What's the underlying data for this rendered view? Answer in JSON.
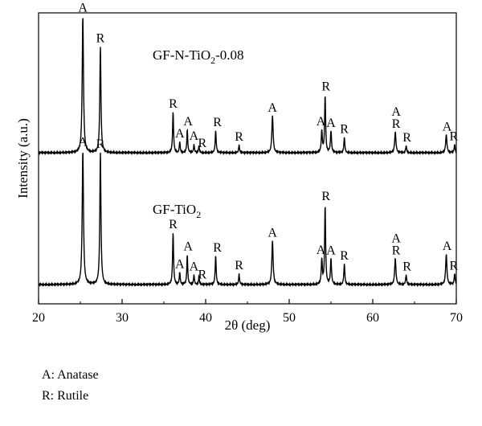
{
  "chart_data": {
    "type": "line",
    "xlabel": "2θ (deg)",
    "ylabel": "Intensity (a.u.)",
    "xlim": [
      20,
      70
    ],
    "xticks": [
      20,
      30,
      40,
      50,
      60,
      70
    ],
    "grid": false,
    "series": [
      {
        "name": "GF-N-TiO2-0.08",
        "label_parts": [
          "GF-N-TiO",
          "2",
          "-0.08"
        ],
        "baseline_y": 1.0,
        "peaks": [
          {
            "x": 25.3,
            "h": 1.0,
            "w": 0.18
          },
          {
            "x": 27.4,
            "h": 0.78,
            "w": 0.16
          },
          {
            "x": 36.1,
            "h": 0.3,
            "w": 0.14
          },
          {
            "x": 36.9,
            "h": 0.08,
            "w": 0.12
          },
          {
            "x": 37.8,
            "h": 0.17,
            "w": 0.13
          },
          {
            "x": 38.6,
            "h": 0.06,
            "w": 0.12
          },
          {
            "x": 39.2,
            "h": 0.05,
            "w": 0.12
          },
          {
            "x": 41.2,
            "h": 0.16,
            "w": 0.14
          },
          {
            "x": 44.0,
            "h": 0.06,
            "w": 0.12
          },
          {
            "x": 48.0,
            "h": 0.27,
            "w": 0.18
          },
          {
            "x": 53.9,
            "h": 0.16,
            "w": 0.15
          },
          {
            "x": 54.3,
            "h": 0.42,
            "w": 0.14
          },
          {
            "x": 55.0,
            "h": 0.16,
            "w": 0.15
          },
          {
            "x": 56.6,
            "h": 0.11,
            "w": 0.14
          },
          {
            "x": 62.7,
            "h": 0.15,
            "w": 0.18
          },
          {
            "x": 64.0,
            "h": 0.05,
            "w": 0.14
          },
          {
            "x": 68.8,
            "h": 0.13,
            "w": 0.18
          },
          {
            "x": 69.8,
            "h": 0.06,
            "w": 0.14
          }
        ]
      },
      {
        "name": "GF-TiO2",
        "label_parts": [
          "GF-TiO",
          "2",
          ""
        ],
        "baseline_y": 0.0,
        "peaks": [
          {
            "x": 25.3,
            "h": 0.98,
            "w": 0.18
          },
          {
            "x": 27.4,
            "h": 0.97,
            "w": 0.16
          },
          {
            "x": 36.1,
            "h": 0.38,
            "w": 0.14
          },
          {
            "x": 36.9,
            "h": 0.09,
            "w": 0.12
          },
          {
            "x": 37.8,
            "h": 0.22,
            "w": 0.13
          },
          {
            "x": 38.6,
            "h": 0.07,
            "w": 0.12
          },
          {
            "x": 39.2,
            "h": 0.06,
            "w": 0.12
          },
          {
            "x": 41.2,
            "h": 0.21,
            "w": 0.14
          },
          {
            "x": 44.0,
            "h": 0.08,
            "w": 0.12
          },
          {
            "x": 48.0,
            "h": 0.32,
            "w": 0.18
          },
          {
            "x": 53.9,
            "h": 0.18,
            "w": 0.15
          },
          {
            "x": 54.3,
            "h": 0.58,
            "w": 0.14
          },
          {
            "x": 55.0,
            "h": 0.19,
            "w": 0.15
          },
          {
            "x": 56.6,
            "h": 0.15,
            "w": 0.14
          },
          {
            "x": 62.7,
            "h": 0.19,
            "w": 0.18
          },
          {
            "x": 64.0,
            "h": 0.07,
            "w": 0.14
          },
          {
            "x": 68.8,
            "h": 0.22,
            "w": 0.18
          },
          {
            "x": 69.8,
            "h": 0.08,
            "w": 0.14
          }
        ]
      }
    ],
    "annotations": [
      {
        "text": "A",
        "x": 25.3,
        "series": 0
      },
      {
        "text": "R",
        "x": 27.4,
        "series": 0
      },
      {
        "text": "R",
        "x": 36.1,
        "series": 0
      },
      {
        "text": "A",
        "x": 36.9,
        "series": 0
      },
      {
        "text": "A",
        "x": 37.9,
        "series": 0
      },
      {
        "text": "A",
        "x": 38.6,
        "series": 0
      },
      {
        "text": "R",
        "x": 39.6,
        "series": 0
      },
      {
        "text": "R",
        "x": 41.4,
        "series": 0
      },
      {
        "text": "R",
        "x": 44.0,
        "series": 0
      },
      {
        "text": "A",
        "x": 48.0,
        "series": 0
      },
      {
        "text": "A",
        "x": 53.8,
        "series": 0
      },
      {
        "text": "R",
        "x": 54.4,
        "series": 0
      },
      {
        "text": "A",
        "x": 55.0,
        "series": 0
      },
      {
        "text": "R",
        "x": 56.6,
        "series": 0
      },
      {
        "text": "A",
        "x": 62.8,
        "series": 0,
        "stack": 1
      },
      {
        "text": "R",
        "x": 62.8,
        "series": 0
      },
      {
        "text": "R",
        "x": 64.1,
        "series": 0
      },
      {
        "text": "A",
        "x": 68.9,
        "series": 0
      },
      {
        "text": "R",
        "x": 69.7,
        "series": 0
      },
      {
        "text": "A",
        "x": 25.3,
        "series": 1
      },
      {
        "text": "R",
        "x": 27.4,
        "series": 1
      },
      {
        "text": "R",
        "x": 36.1,
        "series": 1
      },
      {
        "text": "A",
        "x": 36.9,
        "series": 1
      },
      {
        "text": "A",
        "x": 37.9,
        "series": 1
      },
      {
        "text": "A",
        "x": 38.6,
        "series": 1
      },
      {
        "text": "R",
        "x": 39.6,
        "series": 1
      },
      {
        "text": "R",
        "x": 41.4,
        "series": 1
      },
      {
        "text": "R",
        "x": 44.0,
        "series": 1
      },
      {
        "text": "A",
        "x": 48.0,
        "series": 1
      },
      {
        "text": "A",
        "x": 53.8,
        "series": 1
      },
      {
        "text": "R",
        "x": 54.4,
        "series": 1
      },
      {
        "text": "A",
        "x": 55.0,
        "series": 1
      },
      {
        "text": "R",
        "x": 56.6,
        "series": 1
      },
      {
        "text": "A",
        "x": 62.8,
        "series": 1,
        "stack": 1
      },
      {
        "text": "R",
        "x": 62.8,
        "series": 1
      },
      {
        "text": "R",
        "x": 64.1,
        "series": 1
      },
      {
        "text": "A",
        "x": 68.9,
        "series": 1
      },
      {
        "text": "R",
        "x": 69.7,
        "series": 1
      }
    ]
  },
  "legend": {
    "anatase": "A: Anatase",
    "rutile": "R: Rutile"
  }
}
